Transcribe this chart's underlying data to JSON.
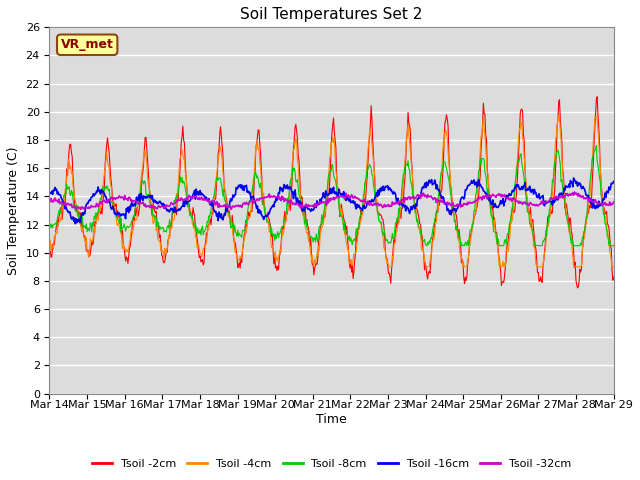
{
  "title": "Soil Temperatures Set 2",
  "xlabel": "Time",
  "ylabel": "Soil Temperature (C)",
  "ylim": [
    0,
    26
  ],
  "yticks": [
    0,
    2,
    4,
    6,
    8,
    10,
    12,
    14,
    16,
    18,
    20,
    22,
    24,
    26
  ],
  "date_labels": [
    "Mar 14",
    "Mar 15",
    "Mar 16",
    "Mar 17",
    "Mar 18",
    "Mar 19",
    "Mar 20",
    "Mar 21",
    "Mar 22",
    "Mar 23",
    "Mar 24",
    "Mar 25",
    "Mar 26",
    "Mar 27",
    "Mar 28",
    "Mar 29"
  ],
  "annotation_text": "VR_met",
  "series_colors": [
    "#ff0000",
    "#ff8800",
    "#00cc00",
    "#0000ee",
    "#cc00cc"
  ],
  "series_labels": [
    "Tsoil -2cm",
    "Tsoil -4cm",
    "Tsoil -8cm",
    "Tsoil -16cm",
    "Tsoil -32cm"
  ],
  "plot_bg_color": "#dcdcdc",
  "title_fontsize": 11,
  "axis_fontsize": 9,
  "tick_fontsize": 8,
  "legend_fontsize": 8,
  "n_points": 720,
  "days": 15
}
